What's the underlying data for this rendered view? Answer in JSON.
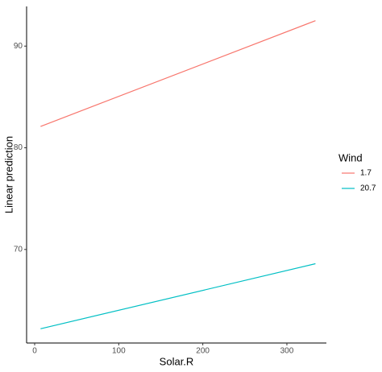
{
  "chart_data": {
    "type": "line",
    "x": [
      7,
      334
    ],
    "series": [
      {
        "name": "1.7",
        "color": "#f8766d",
        "values": [
          82.1,
          92.5
        ]
      },
      {
        "name": "20.7",
        "color": "#00bfc4",
        "values": [
          62.2,
          68.6
        ]
      }
    ],
    "legend_title": "Wind",
    "x_label": "Solar.R",
    "y_label": "Linear prediction",
    "xlim": [
      -9.6,
      347
    ],
    "ylim": [
      60.8,
      93.9
    ],
    "xticks": [
      0,
      100,
      200,
      300
    ],
    "yticks": [
      70,
      80,
      90
    ],
    "grid": false,
    "legend_position": "right"
  }
}
